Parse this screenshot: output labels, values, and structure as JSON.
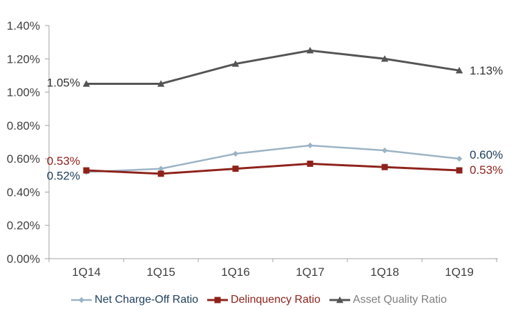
{
  "chart_data": {
    "type": "line",
    "title": "",
    "xlabel": "",
    "ylabel": "",
    "categories": [
      "1Q14",
      "1Q15",
      "1Q16",
      "1Q17",
      "1Q18",
      "1Q19"
    ],
    "series": [
      {
        "name": "Net Charge-Off Ratio",
        "values": [
          0.52,
          0.54,
          0.63,
          0.68,
          0.65,
          0.6
        ],
        "color": "#9BB3C5",
        "marker": "diamond",
        "label_color": "#20405C",
        "stroke_width": 2.5
      },
      {
        "name": "Delinquency Ratio",
        "values": [
          0.53,
          0.51,
          0.54,
          0.57,
          0.55,
          0.53
        ],
        "color": "#8E221B",
        "marker": "square",
        "label_color": "#8E221B",
        "stroke_width": 3
      },
      {
        "name": "Asset Quality Ratio",
        "values": [
          1.05,
          1.05,
          1.17,
          1.25,
          1.2,
          1.13
        ],
        "color": "#545454",
        "marker": "triangle",
        "label_color": "#7F7F7F",
        "stroke_width": 3
      }
    ],
    "ylim": [
      0,
      1.4
    ],
    "ytick_step": 0.2,
    "yticks": [
      "0.00%",
      "0.20%",
      "0.40%",
      "0.60%",
      "0.80%",
      "1.00%",
      "1.20%",
      "1.40%"
    ],
    "grid": false,
    "legend_position": "bottom",
    "axis_color": "#A0A0A0",
    "tick_label_color": "#404040",
    "annotations": [
      {
        "text": "1.05%",
        "series": 2,
        "point": 0,
        "side": "left",
        "dy": -2,
        "color": "#333333"
      },
      {
        "text": "0.53%",
        "series": 1,
        "point": 0,
        "side": "left",
        "dy": -14,
        "color": "#8E221B"
      },
      {
        "text": "0.52%",
        "series": 0,
        "point": 0,
        "side": "left",
        "dy": 5,
        "color": "#20405C"
      },
      {
        "text": "1.13%",
        "series": 2,
        "point": 5,
        "side": "right",
        "dy": 0,
        "color": "#333333"
      },
      {
        "text": "0.60%",
        "series": 0,
        "point": 5,
        "side": "right",
        "dy": -6,
        "color": "#20405C"
      },
      {
        "text": "0.53%",
        "series": 1,
        "point": 5,
        "side": "right",
        "dy": -1,
        "color": "#8E221B"
      }
    ]
  }
}
